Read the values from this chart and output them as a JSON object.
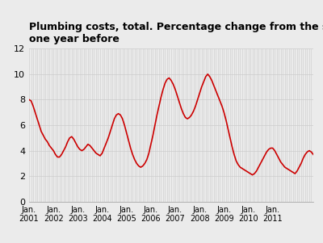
{
  "title": "Plumbing costs, total. Percentage change from the same month\none year before",
  "title_fontsize": 9,
  "line_color": "#cc0000",
  "line_width": 1.2,
  "background_color": "#ebebeb",
  "ylim": [
    0,
    12
  ],
  "yticks": [
    0,
    2,
    4,
    6,
    8,
    10,
    12
  ],
  "grid_color": "#cccccc",
  "xtick_labels": [
    "Jan.\n2001",
    "Jan.\n2002",
    "Jan.\n2003",
    "Jan.\n2004",
    "Jan.\n2005",
    "Jan.\n2006",
    "Jan.\n2007",
    "Jan.\n2008",
    "Jan.\n2009",
    "Jan.\n2010",
    "Jan.\n2011"
  ],
  "values": [
    8.0,
    7.9,
    7.5,
    7.0,
    6.5,
    6.0,
    5.5,
    5.2,
    4.9,
    4.7,
    4.4,
    4.2,
    4.0,
    3.7,
    3.5,
    3.5,
    3.7,
    4.0,
    4.3,
    4.7,
    5.0,
    5.1,
    4.9,
    4.6,
    4.3,
    4.1,
    4.0,
    4.1,
    4.3,
    4.5,
    4.4,
    4.2,
    4.0,
    3.8,
    3.7,
    3.6,
    3.8,
    4.2,
    4.6,
    5.0,
    5.5,
    6.0,
    6.5,
    6.8,
    6.9,
    6.8,
    6.5,
    6.0,
    5.4,
    4.8,
    4.2,
    3.7,
    3.3,
    3.0,
    2.8,
    2.7,
    2.8,
    3.0,
    3.3,
    3.8,
    4.5,
    5.2,
    6.0,
    6.8,
    7.5,
    8.2,
    8.8,
    9.3,
    9.6,
    9.7,
    9.5,
    9.2,
    8.8,
    8.3,
    7.8,
    7.3,
    6.9,
    6.6,
    6.5,
    6.6,
    6.8,
    7.1,
    7.5,
    8.0,
    8.5,
    9.0,
    9.4,
    9.8,
    10.0,
    9.8,
    9.5,
    9.1,
    8.7,
    8.3,
    7.9,
    7.5,
    7.0,
    6.4,
    5.7,
    5.0,
    4.3,
    3.7,
    3.2,
    2.9,
    2.7,
    2.6,
    2.5,
    2.4,
    2.3,
    2.2,
    2.1,
    2.2,
    2.4,
    2.7,
    3.0,
    3.3,
    3.6,
    3.9,
    4.1,
    4.2,
    4.2,
    4.0,
    3.7,
    3.4,
    3.1,
    2.9,
    2.7,
    2.6,
    2.5,
    2.4,
    2.3,
    2.2,
    2.4,
    2.7,
    3.0,
    3.4,
    3.7,
    3.9,
    4.0,
    3.9,
    3.7
  ]
}
